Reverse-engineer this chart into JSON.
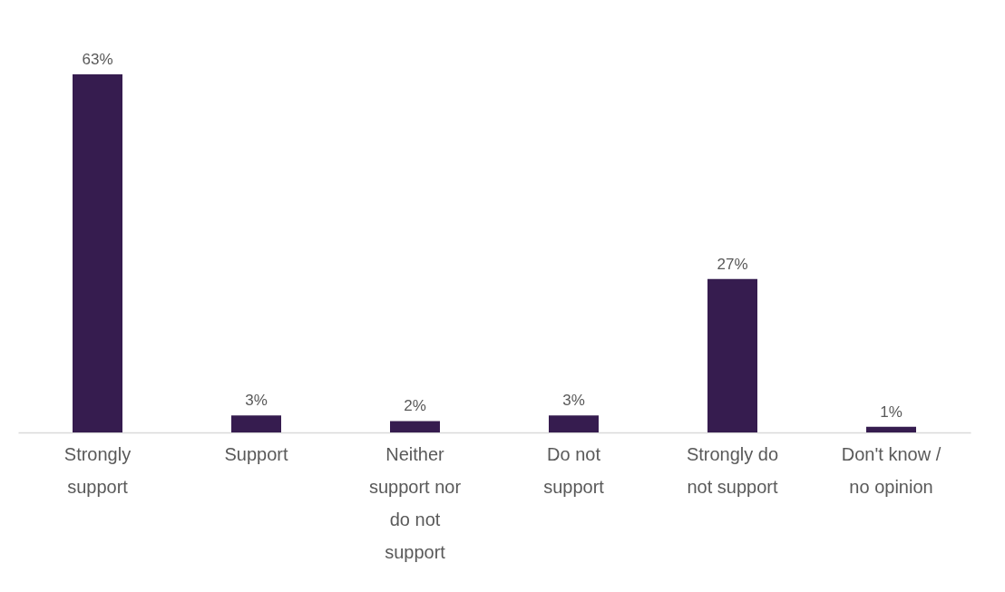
{
  "chart_data": {
    "type": "bar",
    "categories": [
      "Strongly support",
      "Support",
      "Neither support nor do not support",
      "Do not support",
      "Strongly do not support",
      "Don't know / no opinion"
    ],
    "values": [
      63,
      3,
      2,
      3,
      27,
      1
    ],
    "value_labels": [
      "63%",
      "3%",
      "2%",
      "3%",
      "27%",
      "1%"
    ],
    "color": "#361c4f"
  }
}
